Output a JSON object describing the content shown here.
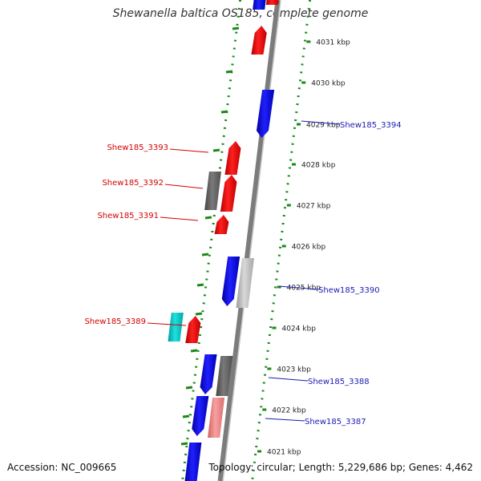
{
  "header": {
    "title": "Shewanella baltica OS185, complete genome"
  },
  "footer": {
    "accession": "Accession: NC_009665",
    "topology": "Topology: circular; Length: 5,229,686 bp; Genes: 4,462"
  },
  "ticks": [
    "4031 kbp",
    "4030 kbp",
    "4029 kbp",
    "4028 kbp",
    "4027 kbp",
    "4026 kbp",
    "4025 kbp",
    "4024 kbp",
    "4023 kbp",
    "4022 kbp",
    "4021 kbp"
  ],
  "labels_left": [
    {
      "text": "Shew185_3393",
      "color": "#d40000"
    },
    {
      "text": "Shew185_3392",
      "color": "#d40000"
    },
    {
      "text": "Shew185_3391",
      "color": "#d40000"
    },
    {
      "text": "Shew185_3389",
      "color": "#d40000"
    }
  ],
  "labels_right": [
    {
      "text": "Shew185_3394",
      "color": "#1b1bb4"
    },
    {
      "text": "Shew185_3390",
      "color": "#1b1bb4"
    },
    {
      "text": "Shew185_3388",
      "color": "#1b1bb4"
    },
    {
      "text": "Shew185_3387",
      "color": "#1b1bb4"
    }
  ],
  "colors": {
    "forward": "#ff0000",
    "reverse": "#0000ff",
    "gray": "#666666",
    "lightgray": "#c0c0c0",
    "cyan": "#00c8c8",
    "pink": "#f08080",
    "backbone": "#8a8a8a",
    "dotted_ring": "#1a8a1a"
  }
}
